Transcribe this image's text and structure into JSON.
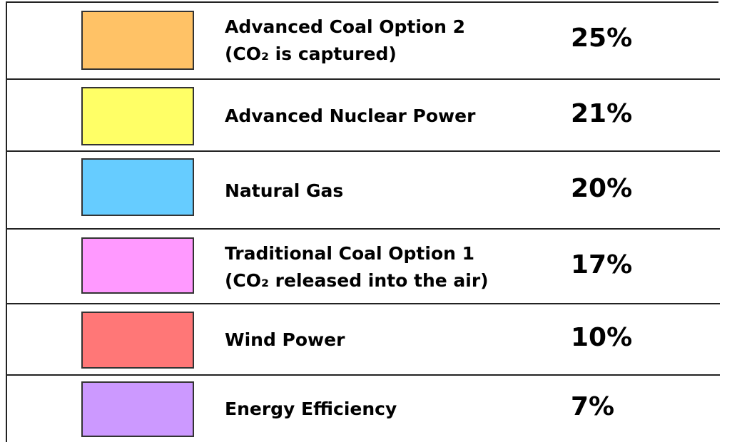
{
  "table": {
    "rows": [
      {
        "color": "#FFC266",
        "label": [
          "Advanced Coal Option 2",
          "(CO₂  is captured)"
        ],
        "share": "25%"
      },
      {
        "color": "#FFFF66",
        "label": [
          "Advanced Nuclear Power"
        ],
        "share": "21%"
      },
      {
        "color": "#66CCFF",
        "label": [
          "Natural Gas"
        ],
        "share": "20%"
      },
      {
        "color": "#FF99FF",
        "label": [
          "Traditional Coal Option 1",
          "(CO₂  released  into the air)"
        ],
        "share": "17%"
      },
      {
        "color": "#FF7777",
        "label": [
          "Wind Power"
        ],
        "share": "10%"
      },
      {
        "color": "#CC99FF",
        "label": [
          "Energy Efficiency"
        ],
        "share": "7%"
      }
    ]
  }
}
